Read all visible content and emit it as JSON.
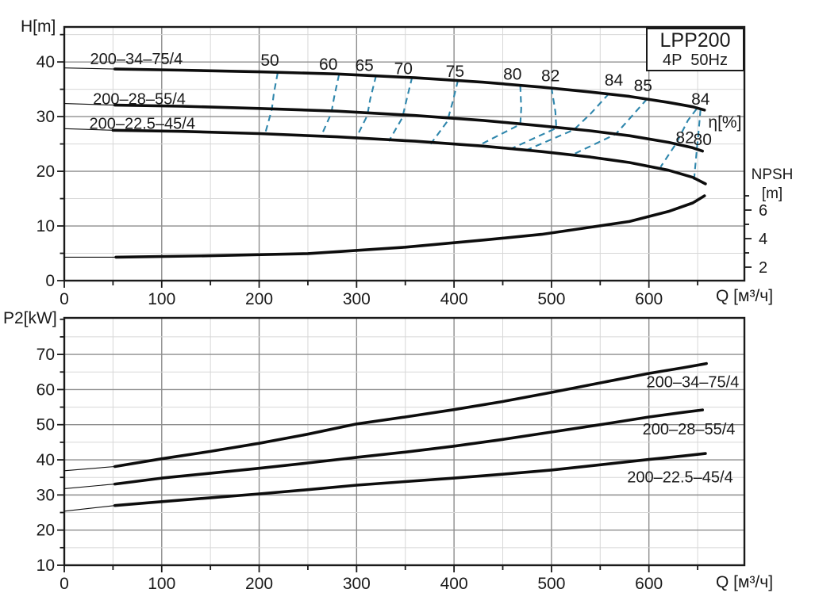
{
  "title_box": {
    "line1": "LPP200",
    "line2": "4P  50Hz"
  },
  "colors": {
    "accent": "#2e86ac",
    "curve": "#0d0d0d",
    "grid_minor": "#d7d7d7",
    "grid_major": "#8d8d8d",
    "axis": "#1a1a1a",
    "background": "#ffffff"
  },
  "chart_data": [
    {
      "id": "head",
      "type": "line",
      "title": "",
      "xlabel": "Q [м³/ч]",
      "ylabel": "H[m]",
      "xlim": [
        0,
        698
      ],
      "ylim": [
        0,
        46.4
      ],
      "xticks": [
        0,
        100,
        200,
        300,
        400,
        500,
        600
      ],
      "xminor_step": 50,
      "yticks": [
        0,
        10,
        20,
        30,
        40
      ],
      "yminor_step": 5,
      "grid": true,
      "series": [
        {
          "name": "200–34–75/4",
          "lead_in": [
            [
              0,
              38.9
            ],
            [
              52,
              38.7
            ]
          ],
          "points": [
            [
              52,
              38.7
            ],
            [
              120,
              38.5
            ],
            [
              200,
              38.2
            ],
            [
              280,
              37.8
            ],
            [
              360,
              37.1
            ],
            [
              430,
              36.3
            ],
            [
              490,
              35.4
            ],
            [
              540,
              34.5
            ],
            [
              580,
              33.7
            ],
            [
              620,
              32.6
            ],
            [
              645,
              31.8
            ],
            [
              657,
              31.2
            ]
          ],
          "label": {
            "text": "200–34–75/4",
            "x": 74,
            "y": 40.6
          }
        },
        {
          "name": "200–28–55/4",
          "lead_in": [
            [
              0,
              32.4
            ],
            [
              52,
              32.1
            ]
          ],
          "points": [
            [
              52,
              32.1
            ],
            [
              120,
              31.9
            ],
            [
              200,
              31.5
            ],
            [
              280,
              31.0
            ],
            [
              360,
              30.2
            ],
            [
              430,
              29.3
            ],
            [
              490,
              28.3
            ],
            [
              540,
              27.4
            ],
            [
              580,
              26.5
            ],
            [
              620,
              25.3
            ],
            [
              645,
              24.3
            ],
            [
              655,
              23.7
            ]
          ],
          "label": {
            "text": "200–28–55/4",
            "x": 77,
            "y": 33.3
          }
        },
        {
          "name": "200–22.5–45/4",
          "lead_in": [
            [
              0,
              27.8
            ],
            [
              50,
              27.5
            ]
          ],
          "points": [
            [
              50,
              27.5
            ],
            [
              120,
              27.3
            ],
            [
              200,
              26.9
            ],
            [
              280,
              26.3
            ],
            [
              360,
              25.5
            ],
            [
              430,
              24.6
            ],
            [
              490,
              23.6
            ],
            [
              540,
              22.6
            ],
            [
              580,
              21.6
            ],
            [
              620,
              20.2
            ],
            [
              645,
              18.9
            ],
            [
              658,
              17.7
            ]
          ],
          "label": {
            "text": "200–22.5–45/4",
            "x": 80,
            "y": 28.8
          }
        }
      ],
      "efficiency": {
        "axis_label": {
          "text": "η[%]",
          "x": 678,
          "y": 29.0
        },
        "contours": [
          {
            "value": "50",
            "label": {
              "x": 211,
              "y": 40.3
            },
            "points": [
              [
                219,
                38.0
              ],
              [
                215,
                34.2
              ],
              [
                213,
                31.3
              ],
              [
                206,
                26.8
              ]
            ]
          },
          {
            "value": "60",
            "label": {
              "x": 271,
              "y": 39.6
            },
            "points": [
              [
                282,
                37.7
              ],
              [
                277,
                33.6
              ],
              [
                274,
                30.6
              ],
              [
                263,
                26.2
              ]
            ]
          },
          {
            "value": "65",
            "label": {
              "x": 308,
              "y": 39.4
            },
            "points": [
              [
                320,
                37.5
              ],
              [
                314,
                33.2
              ],
              [
                311,
                30.2
              ],
              [
                299,
                25.9
              ]
            ]
          },
          {
            "value": "70",
            "label": {
              "x": 348,
              "y": 38.8
            },
            "points": [
              [
                357,
                37.2
              ],
              [
                351,
                32.9
              ],
              [
                347,
                29.8
              ],
              [
                333,
                25.5
              ]
            ]
          },
          {
            "value": "75",
            "label": {
              "x": 401,
              "y": 38.3
            },
            "points": [
              [
                404,
                36.6
              ],
              [
                398,
                32.3
              ],
              [
                393,
                29.1
              ],
              [
                376,
                25.0
              ]
            ]
          },
          {
            "value": "80",
            "label": {
              "x": 460,
              "y": 37.8
            },
            "points": [
              [
                468,
                35.7
              ],
              [
                469,
                31.5
              ],
              [
                468,
                28.6
              ],
              [
                424,
                24.6
              ]
            ]
          },
          {
            "value": "82",
            "label": {
              "x": 499,
              "y": 37.5
            },
            "points": [
              [
                500,
                35.3
              ],
              [
                504,
                30.9
              ],
              [
                505,
                27.9
              ],
              [
                457,
                24.0
              ]
            ]
          },
          {
            "value": "84",
            "label": {
              "x": 564,
              "y": 36.7
            },
            "points": [
              [
                559,
                34.2
              ],
              [
                540,
                30.5
              ],
              [
                523,
                27.6
              ],
              [
                472,
                23.7
              ]
            ]
          },
          {
            "value": "85",
            "label": {
              "x": 594,
              "y": 35.7
            },
            "points": [
              [
                598,
                33.2
              ],
              [
                580,
                29.6
              ],
              [
                566,
                26.8
              ],
              [
                520,
                22.9
              ]
            ]
          },
          {
            "value": "84",
            "label": {
              "x": 653,
              "y": 33.2
            },
            "points": []
          },
          {
            "value": "82",
            "label": {
              "x": 637,
              "y": 26.2
            },
            "points": [
              [
                649,
                31.4
              ],
              [
                640,
                29.3
              ],
              [
                628,
                25.1
              ],
              [
                612,
                20.8
              ]
            ]
          },
          {
            "value": "80",
            "label": {
              "x": 655,
              "y": 25.8
            },
            "points": [
              [
                653,
                31.3
              ],
              [
                651,
                27.3
              ],
              [
                649,
                23.6
              ],
              [
                646,
                17.9
              ]
            ]
          }
        ]
      },
      "npsh": {
        "label_line1": "NPSH",
        "label_line2": "[m]",
        "ticks": [
          2,
          4,
          6
        ],
        "minor_ticks": [
          3,
          5,
          7
        ],
        "lead_in": [
          [
            0,
            2.7
          ],
          [
            53,
            2.7
          ]
        ],
        "curve": [
          [
            53,
            2.7
          ],
          [
            150,
            2.8
          ],
          [
            250,
            2.95
          ],
          [
            350,
            3.4
          ],
          [
            430,
            3.9
          ],
          [
            490,
            4.3
          ],
          [
            540,
            4.8
          ],
          [
            580,
            5.2
          ],
          [
            620,
            5.9
          ],
          [
            645,
            6.5
          ],
          [
            657,
            7.0
          ]
        ]
      }
    },
    {
      "id": "power",
      "type": "line",
      "title": "",
      "xlabel": "Q [м³/ч]",
      "ylabel": "P2[kW]",
      "xlim": [
        0,
        698
      ],
      "ylim": [
        10,
        80.4
      ],
      "xticks": [
        0,
        100,
        200,
        300,
        400,
        500,
        600
      ],
      "xminor_step": 50,
      "yticks": [
        10,
        20,
        30,
        40,
        50,
        60,
        70
      ],
      "yminor_step": 5,
      "grid": true,
      "series": [
        {
          "name": "200–34–75/4",
          "lead_in": [
            [
              0,
              36.9
            ],
            [
              52,
              38.1
            ]
          ],
          "points": [
            [
              52,
              38.1
            ],
            [
              100,
              40.3
            ],
            [
              150,
              42.4
            ],
            [
              200,
              44.7
            ],
            [
              250,
              47.3
            ],
            [
              300,
              50.2
            ],
            [
              350,
              52.2
            ],
            [
              400,
              54.3
            ],
            [
              450,
              56.6
            ],
            [
              500,
              59.2
            ],
            [
              550,
              61.9
            ],
            [
              600,
              64.6
            ],
            [
              635,
              66.2
            ],
            [
              659,
              67.4
            ]
          ],
          "label": {
            "text": "200–34–75/4",
            "x": 645,
            "y": 62.2
          }
        },
        {
          "name": "200–28–55/4",
          "lead_in": [
            [
              0,
              31.8
            ],
            [
              52,
              33.1
            ]
          ],
          "points": [
            [
              52,
              33.1
            ],
            [
              100,
              34.8
            ],
            [
              150,
              36.2
            ],
            [
              200,
              37.6
            ],
            [
              250,
              39.1
            ],
            [
              300,
              40.7
            ],
            [
              350,
              42.2
            ],
            [
              400,
              43.9
            ],
            [
              450,
              45.8
            ],
            [
              500,
              47.9
            ],
            [
              550,
              50.0
            ],
            [
              600,
              52.2
            ],
            [
              635,
              53.5
            ],
            [
              655,
              54.2
            ]
          ],
          "label": {
            "text": "200–28–55/4",
            "x": 641,
            "y": 48.8
          }
        },
        {
          "name": "200–22.5–45/4",
          "lead_in": [
            [
              0,
              25.4
            ],
            [
              52,
              27.0
            ]
          ],
          "points": [
            [
              52,
              27.0
            ],
            [
              100,
              28.1
            ],
            [
              150,
              29.2
            ],
            [
              200,
              30.3
            ],
            [
              250,
              31.5
            ],
            [
              300,
              32.8
            ],
            [
              350,
              33.8
            ],
            [
              400,
              34.8
            ],
            [
              450,
              35.9
            ],
            [
              500,
              37.1
            ],
            [
              550,
              38.6
            ],
            [
              600,
              40.1
            ],
            [
              635,
              41.1
            ],
            [
              658,
              41.8
            ]
          ],
          "label": {
            "text": "200–22.5–45/4",
            "x": 632,
            "y": 35.2
          }
        }
      ]
    }
  ]
}
